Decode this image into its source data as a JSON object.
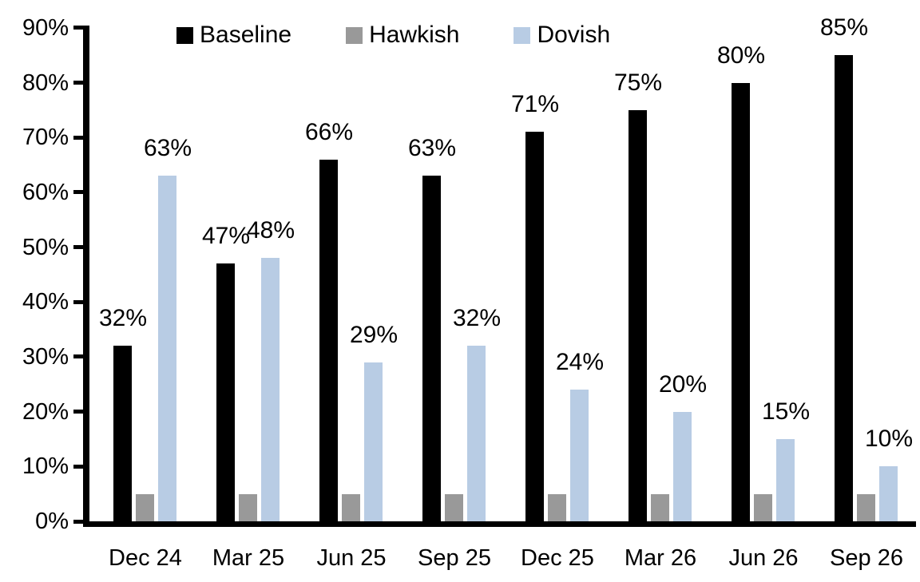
{
  "chart_data": {
    "type": "bar",
    "title": "",
    "xlabel": "",
    "ylabel": "",
    "categories": [
      "Dec 24",
      "Mar 25",
      "Jun 25",
      "Sep 25",
      "Dec 25",
      "Mar 26",
      "Jun 26",
      "Sep 26"
    ],
    "series": [
      {
        "name": "Baseline",
        "color": "#000000",
        "values": [
          32,
          47,
          66,
          63,
          71,
          75,
          80,
          85
        ],
        "labels": [
          "32%",
          "47%",
          "66%",
          "63%",
          "71%",
          "75%",
          "80%",
          "85%"
        ]
      },
      {
        "name": "Hawkish",
        "color": "#999999",
        "values": [
          5,
          5,
          5,
          5,
          5,
          5,
          5,
          5
        ],
        "labels": null
      },
      {
        "name": "Dovish",
        "color": "#B8CCE4",
        "values": [
          63,
          48,
          29,
          32,
          24,
          20,
          15,
          10
        ],
        "labels": [
          "63%",
          "48%",
          "29%",
          "32%",
          "24%",
          "20%",
          "15%",
          "10%"
        ]
      }
    ],
    "ylim": [
      0,
      90
    ],
    "yticks": [
      "0%",
      "10%",
      "20%",
      "30%",
      "40%",
      "50%",
      "60%",
      "70%",
      "80%",
      "90%"
    ],
    "grid": false,
    "legend_position": "top"
  }
}
